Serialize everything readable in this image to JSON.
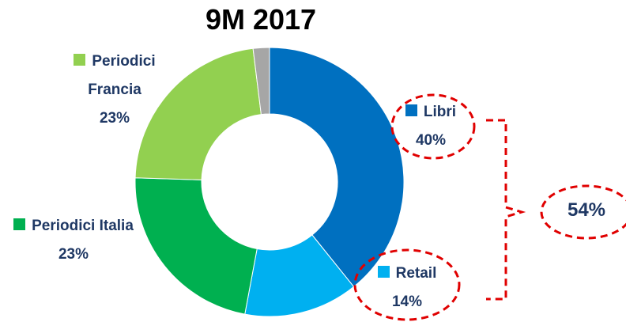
{
  "chart_data": {
    "type": "donut",
    "title": "9M 2017",
    "categories": [
      "Libri",
      "Retail",
      "Periodici Italia",
      "Periodici Francia",
      null
    ],
    "values": [
      40,
      14,
      23,
      23,
      2
    ],
    "value_labels": [
      "40%",
      "14%",
      "23%",
      "23%",
      null
    ],
    "colors": [
      "#0070c0",
      "#00b0f0",
      "#00b050",
      "#92d050",
      "#a6a6a6"
    ],
    "annotations": [
      "54%"
    ]
  }
}
